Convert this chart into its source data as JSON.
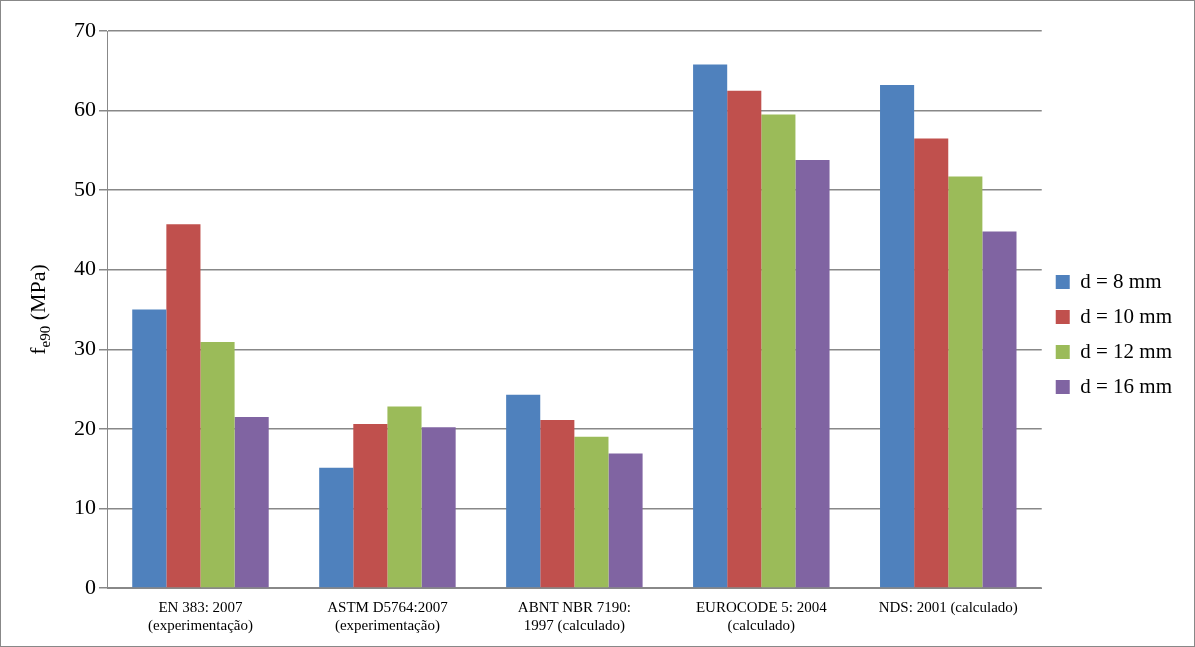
{
  "chart_data": {
    "type": "bar",
    "ylabel": "f$_{e90}$ (MPa)",
    "categories": [
      "EN 383: 2007\n(experimentação)",
      "ASTM D5764:2007\n(experimentação)",
      "ABNT NBR 7190:\n1997 (calculado)",
      "EUROCODE 5: 2004\n(calculado)",
      "NDS: 2001 (calculado)"
    ],
    "series": [
      {
        "name": "d = 8 mm",
        "color": "#4f81bd",
        "values": [
          35.0,
          15.1,
          24.3,
          65.8,
          63.2
        ]
      },
      {
        "name": "d = 10 mm",
        "color": "#c0504d",
        "values": [
          45.7,
          20.6,
          21.1,
          62.5,
          56.5
        ]
      },
      {
        "name": "d = 12 mm",
        "color": "#9bbb59",
        "values": [
          30.9,
          22.8,
          19.0,
          59.5,
          51.7
        ]
      },
      {
        "name": "d = 16 mm",
        "color": "#8064a2",
        "values": [
          21.5,
          20.2,
          16.9,
          53.8,
          44.8
        ]
      }
    ],
    "ylim": [
      0,
      70
    ],
    "yticks": [
      0,
      10,
      20,
      30,
      40,
      50,
      60,
      70
    ],
    "grid": "y",
    "legend": "right"
  }
}
